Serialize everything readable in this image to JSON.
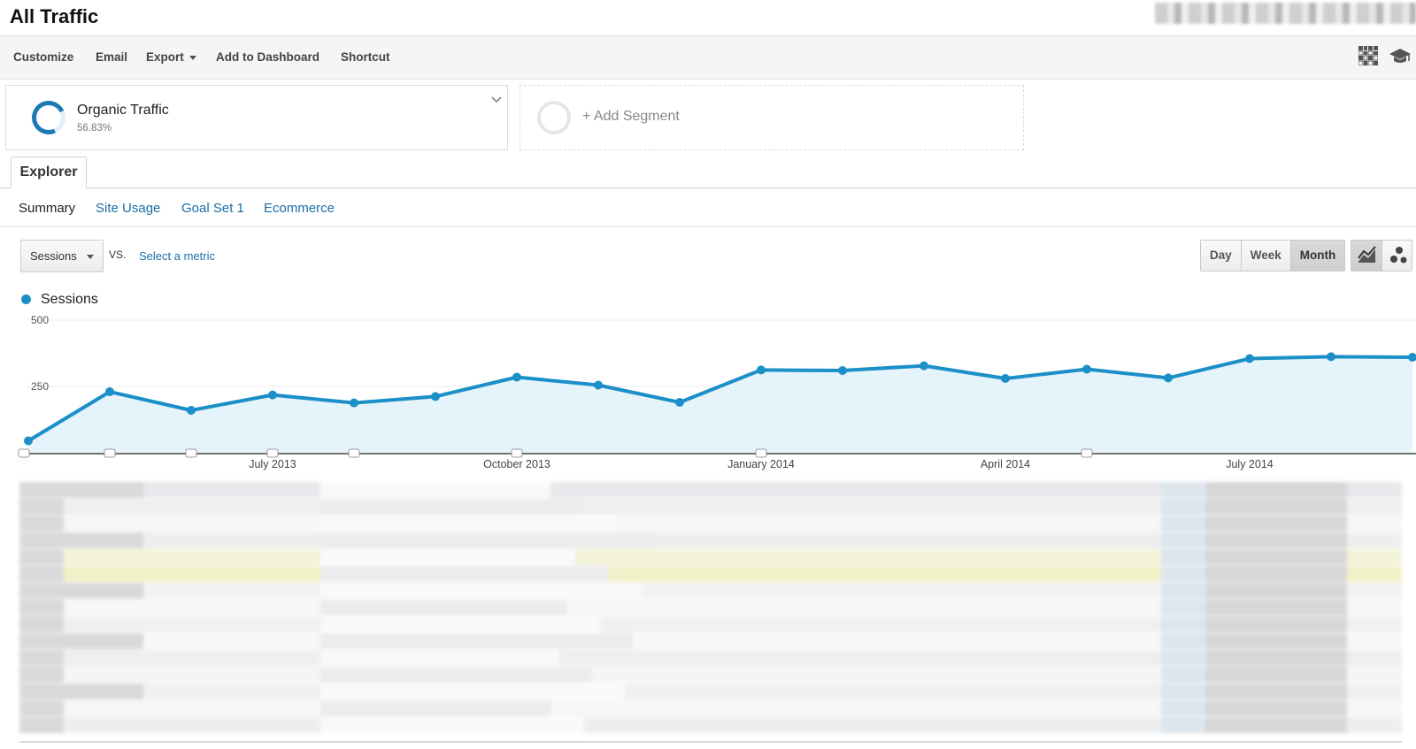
{
  "header": {
    "title": "All Traffic"
  },
  "toolbar": {
    "customize": "Customize",
    "email": "Email",
    "export": "Export",
    "add_to_dashboard": "Add to Dashboard",
    "shortcut": "Shortcut",
    "icons": [
      "grid-icon",
      "graduation-cap-icon"
    ]
  },
  "segments": {
    "active": {
      "name": "Organic Traffic",
      "percent": "56.83%"
    },
    "add_label": "+ Add Segment"
  },
  "tabs": {
    "explorer": "Explorer"
  },
  "subtabs": [
    "Summary",
    "Site Usage",
    "Goal Set 1",
    "Ecommerce"
  ],
  "metric": {
    "selected": "Sessions",
    "vs": "VS.",
    "select_metric": "Select a metric"
  },
  "granularity": {
    "options": [
      "Day",
      "Week",
      "Month"
    ],
    "active": "Month"
  },
  "view_modes": [
    "line-chart-icon",
    "motion-chart-icon"
  ],
  "colors": {
    "series": "#1b8fc8",
    "area": "#e5f3fa",
    "link": "#1a6ea8"
  },
  "chart_data": {
    "type": "area",
    "series": [
      {
        "name": "Sessions",
        "values": [
          45,
          230,
          160,
          218,
          188,
          212,
          285,
          255,
          190,
          312,
          310,
          328,
          280,
          315,
          282,
          355,
          362,
          360
        ]
      }
    ],
    "x": [
      "2013-04",
      "2013-05",
      "2013-06",
      "2013-07",
      "2013-08",
      "2013-09",
      "2013-10",
      "2013-11",
      "2013-12",
      "2014-01",
      "2014-02",
      "2014-03",
      "2014-04",
      "2014-05",
      "2014-06",
      "2014-07",
      "2014-08",
      "2014-09"
    ],
    "x_tick_labels": [
      "July 2013",
      "October 2013",
      "January 2014",
      "April 2014",
      "July 2014"
    ],
    "y_tick_labels": [
      "500",
      "250"
    ],
    "ylim": [
      0,
      500
    ],
    "annotation_markers": [
      0,
      1,
      2,
      3,
      4,
      6,
      9,
      13
    ],
    "grid": true,
    "legend": "top-left"
  }
}
